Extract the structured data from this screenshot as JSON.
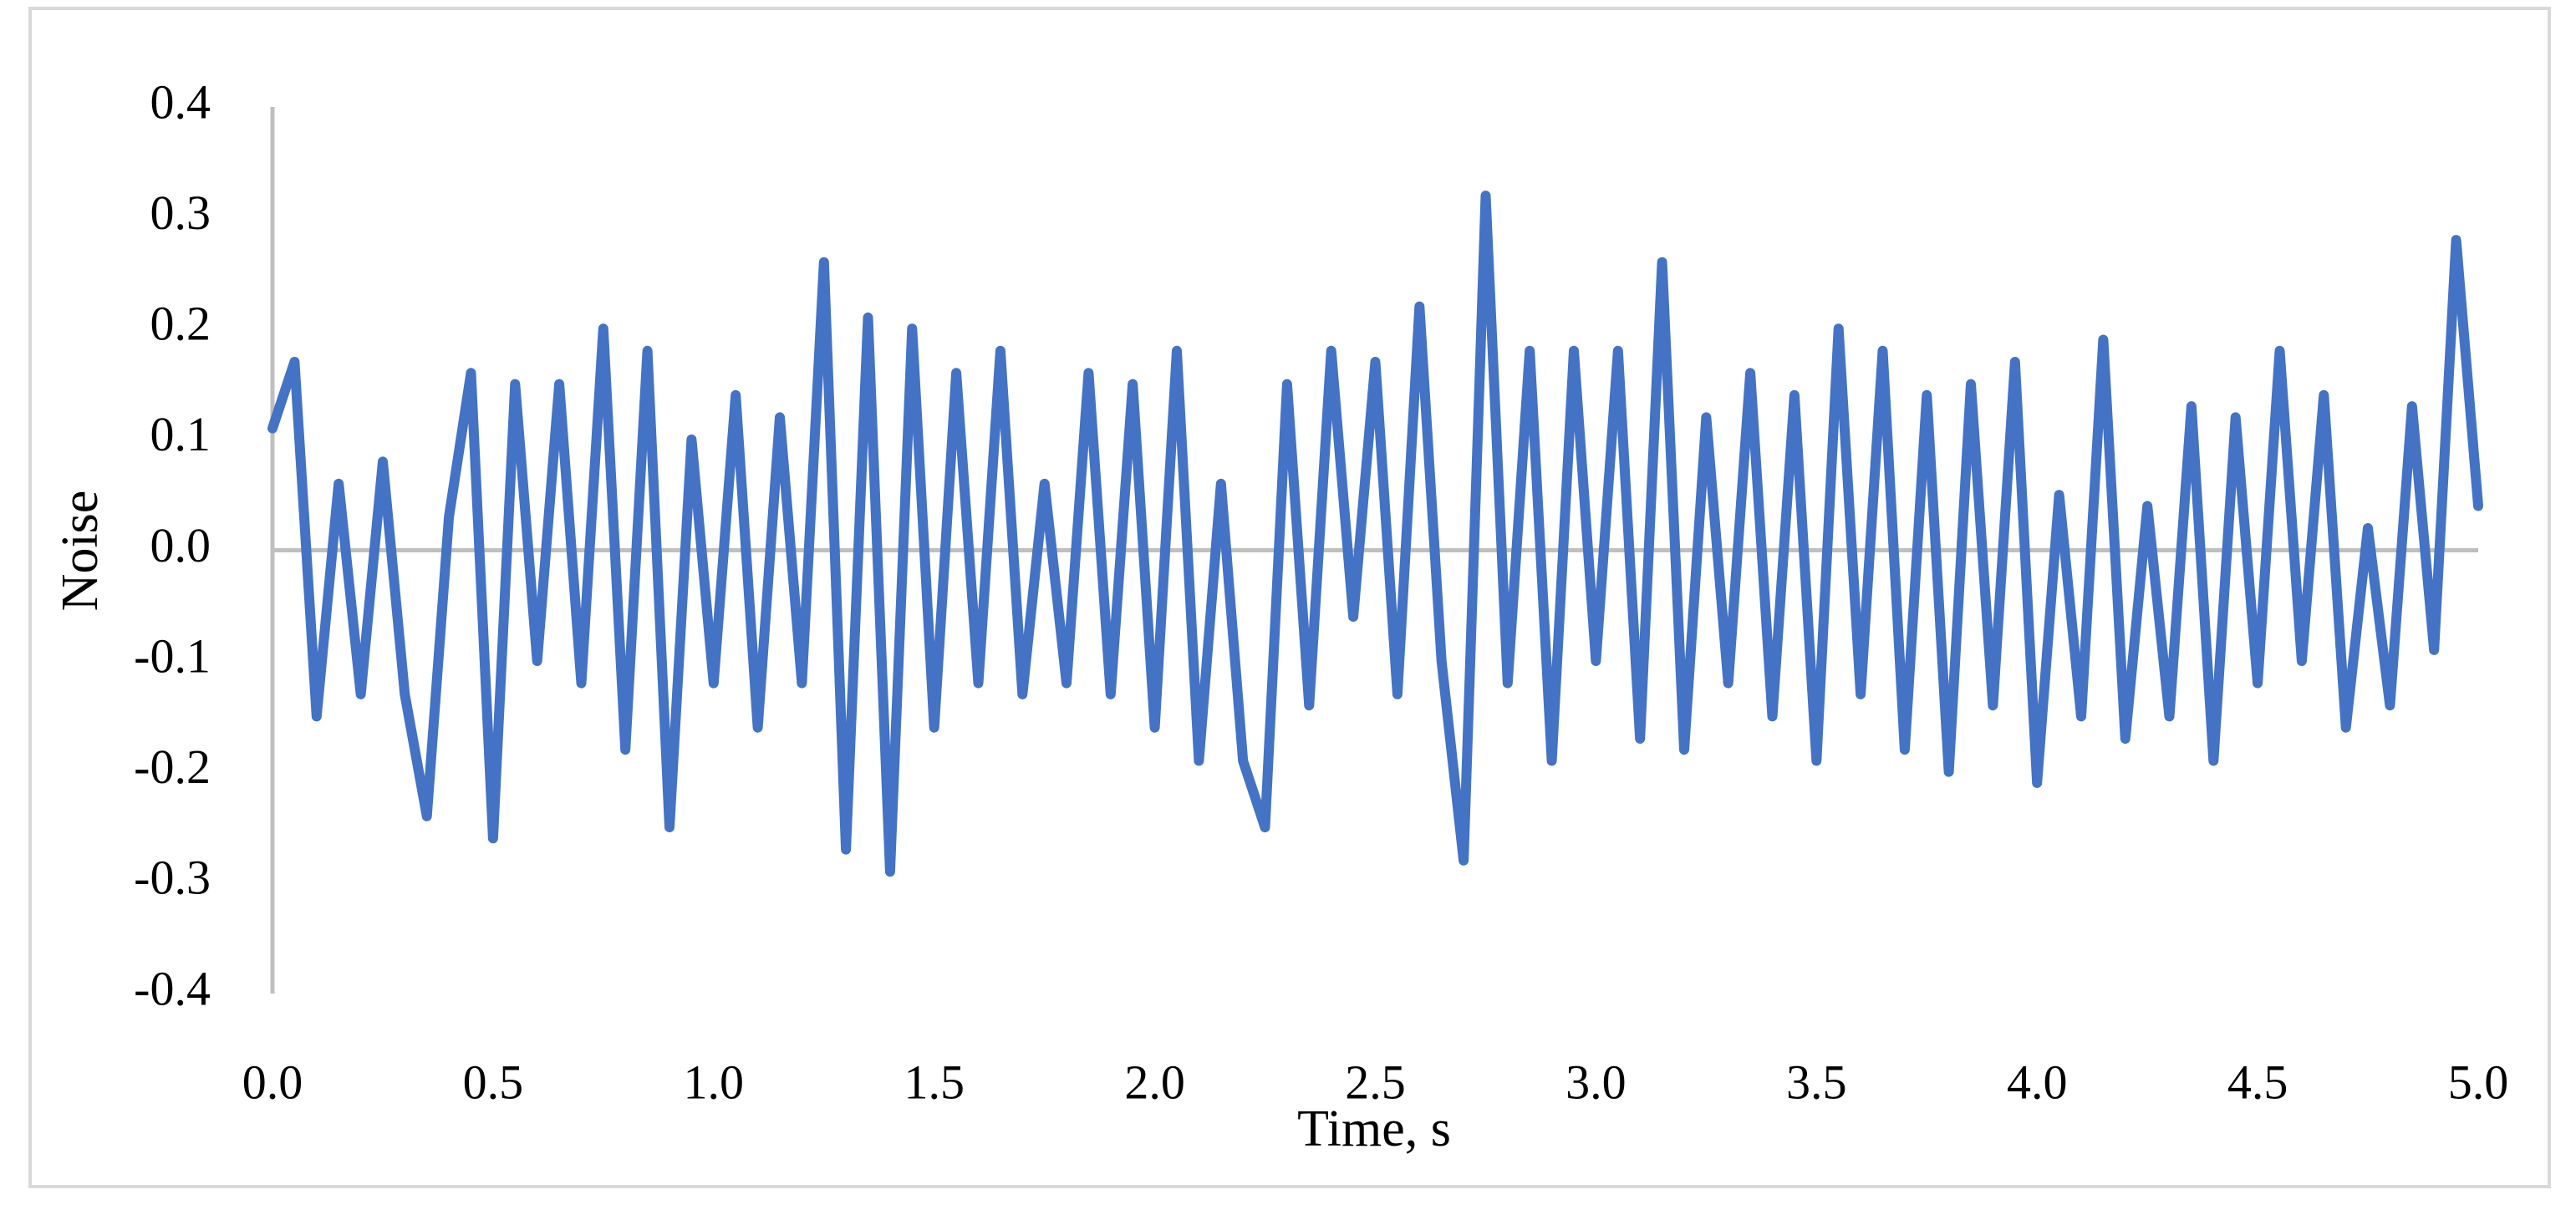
{
  "chart_data": {
    "type": "line",
    "x_label": "Time, s",
    "y_label": "Noise",
    "xlim": [
      0,
      5
    ],
    "xticks": [
      {
        "value": 0,
        "label": "0.0"
      },
      0.5,
      {
        "value": 1,
        "label": "1.0"
      },
      1.5,
      {
        "value": 2,
        "label": "2.0"
      },
      2.5,
      {
        "value": 3,
        "label": "3.0"
      },
      3.5,
      {
        "value": 4,
        "label": "4.0"
      },
      4.5,
      {
        "value": 5,
        "label": "5.0"
      }
    ],
    "ylim": [
      -0.4,
      0.4
    ],
    "yticks": [
      -0.4,
      -0.3,
      -0.2,
      -0.1,
      {
        "value": 0,
        "label": "0.0"
      },
      0.1,
      0.2,
      0.3,
      0.4
    ],
    "grid": false,
    "series": [
      {
        "name": "Noise",
        "color": "#4472c4",
        "x": [
          0,
          0.05,
          0.1,
          0.15,
          0.2,
          0.25,
          0.3,
          0.35,
          0.4,
          0.45,
          0.5,
          0.55,
          0.6,
          0.65,
          0.7,
          0.75,
          0.8,
          0.85,
          0.9,
          0.95,
          1,
          1.05,
          1.1,
          1.15,
          1.2,
          1.25,
          1.3,
          1.35,
          1.4,
          1.45,
          1.5,
          1.55,
          1.6,
          1.65,
          1.7,
          1.75,
          1.8,
          1.85,
          1.9,
          1.95,
          2,
          2.05,
          2.1,
          2.15,
          2.2,
          2.25,
          2.3,
          2.35,
          2.4,
          2.45,
          2.5,
          2.55,
          2.6,
          2.65,
          2.7,
          2.75,
          2.8,
          2.85,
          2.9,
          2.95,
          3,
          3.05,
          3.1,
          3.15,
          3.2,
          3.25,
          3.3,
          3.35,
          3.4,
          3.45,
          3.5,
          3.55,
          3.6,
          3.65,
          3.7,
          3.75,
          3.8,
          3.85,
          3.9,
          3.95,
          4,
          4.05,
          4.1,
          4.15,
          4.2,
          4.25,
          4.3,
          4.35,
          4.4,
          4.45,
          4.5,
          4.55,
          4.6,
          4.65,
          4.7,
          4.75,
          4.8,
          4.85,
          4.9,
          4.95,
          5
        ],
        "values": [
          0.11,
          0.17,
          -0.15,
          0.06,
          -0.13,
          0.08,
          -0.13,
          -0.24,
          0.03,
          0.16,
          -0.26,
          0.15,
          -0.1,
          0.15,
          -0.12,
          0.2,
          -0.18,
          0.18,
          -0.25,
          0.1,
          -0.12,
          0.14,
          -0.16,
          0.12,
          -0.12,
          0.26,
          -0.27,
          0.21,
          -0.29,
          0.2,
          -0.16,
          0.16,
          -0.12,
          0.18,
          -0.13,
          0.06,
          -0.12,
          0.16,
          -0.13,
          0.15,
          -0.16,
          0.18,
          -0.19,
          0.06,
          -0.19,
          -0.25,
          0.15,
          -0.14,
          0.18,
          -0.06,
          0.17,
          -0.13,
          0.22,
          -0.1,
          -0.28,
          0.32,
          -0.12,
          0.18,
          -0.19,
          0.18,
          -0.1,
          0.18,
          -0.17,
          0.26,
          -0.18,
          0.12,
          -0.12,
          0.16,
          -0.15,
          0.14,
          -0.19,
          0.2,
          -0.13,
          0.18,
          -0.18,
          0.14,
          -0.2,
          0.15,
          -0.14,
          0.17,
          -0.21,
          0.05,
          -0.15,
          0.19,
          -0.17,
          0.04,
          -0.15,
          0.13,
          -0.19,
          0.12,
          -0.12,
          0.18,
          -0.1,
          0.14,
          -0.16,
          0.02,
          -0.14,
          0.13,
          -0.09,
          0.28,
          0.04
        ]
      }
    ]
  }
}
